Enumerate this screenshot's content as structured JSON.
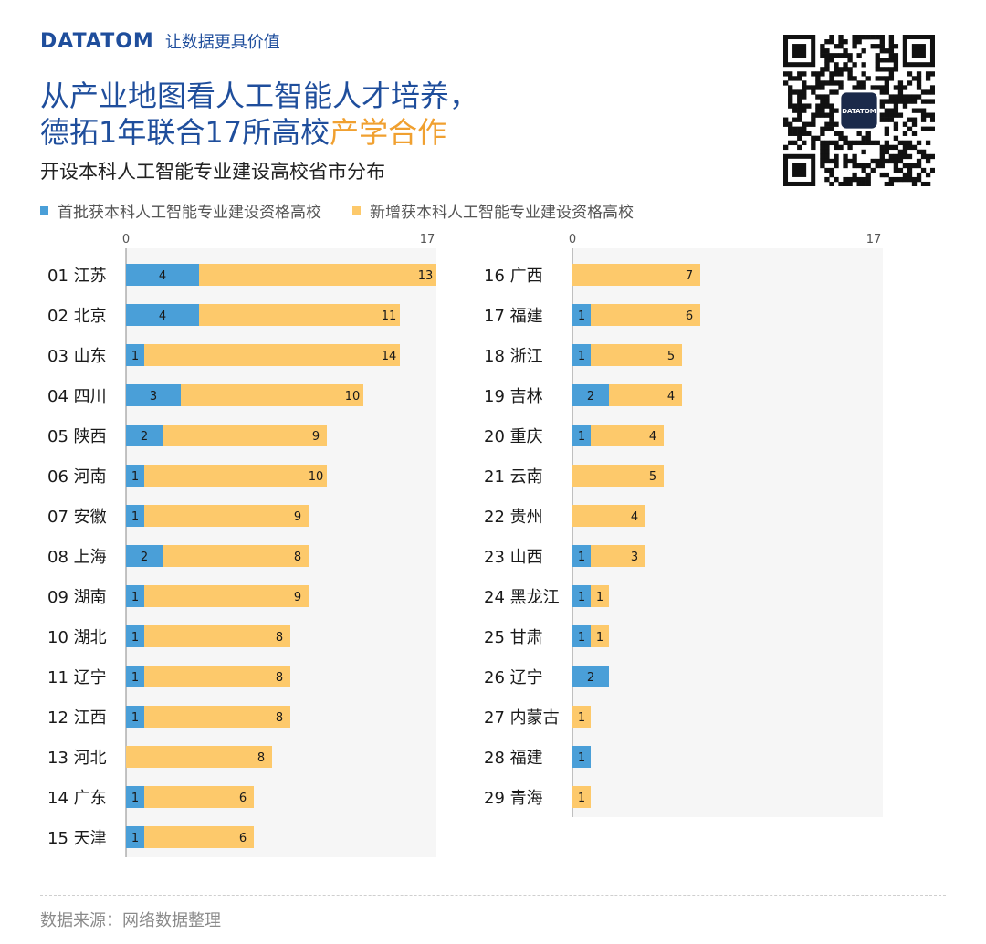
{
  "header": {
    "logo_text": "DATATOM",
    "slogan": "让数据更具价值",
    "title_line1": "从产业地图看人工智能人才培养，",
    "title_line2_main": "德拓1年联合17所高校",
    "title_line2_highlight": "产学合作",
    "subtitle": "开设本科人工智能专业建设高校省市分布",
    "qr_icon": "qr-code-icon",
    "qr_center_label": "DATATOM"
  },
  "colors": {
    "first_batch": "#4a9fd8",
    "new_added": "#fdc96b",
    "panel_bg": "#f6f6f6",
    "title_blue": "#1f4e9c",
    "highlight_orange": "#f0a030"
  },
  "chart_data": [
    {
      "type": "bar",
      "orientation": "horizontal",
      "stacked": true,
      "xlim": [
        0,
        17
      ],
      "tick_labels": [
        "0",
        "17"
      ],
      "categories": [
        "01 江苏",
        "02 北京",
        "03 山东",
        "04 四川",
        "05 陕西",
        "06 河南",
        "07 安徽",
        "08 上海",
        "09 湖南",
        "10 湖北",
        "11 辽宁",
        "12 江西",
        "13 河北",
        "14 广东",
        "15 天津"
      ],
      "series": [
        {
          "name": "首批获本科人工智能专业建设资格高校",
          "values": [
            4,
            4,
            1,
            3,
            2,
            1,
            1,
            2,
            1,
            1,
            1,
            1,
            0,
            1,
            1
          ]
        },
        {
          "name": "新增获本科人工智能专业建设资格高校",
          "values": [
            13,
            11,
            14,
            10,
            9,
            10,
            9,
            8,
            9,
            8,
            8,
            8,
            8,
            6,
            6
          ]
        }
      ]
    },
    {
      "type": "bar",
      "orientation": "horizontal",
      "stacked": true,
      "xlim": [
        0,
        17
      ],
      "tick_labels": [
        "0",
        "17"
      ],
      "categories": [
        "16 广西",
        "17 福建",
        "18 浙江",
        "19 吉林",
        "20 重庆",
        "21 云南",
        "22 贵州",
        "23 山西",
        "24 黑龙江",
        "25 甘肃",
        "26 辽宁",
        "27 内蒙古",
        "28 福建",
        "29 青海"
      ],
      "series": [
        {
          "name": "首批获本科人工智能专业建设资格高校",
          "values": [
            0,
            1,
            1,
            2,
            1,
            0,
            0,
            1,
            1,
            1,
            2,
            0,
            1,
            0
          ]
        },
        {
          "name": "新增获本科人工智能专业建设资格高校",
          "values": [
            7,
            6,
            5,
            4,
            4,
            5,
            4,
            3,
            1,
            1,
            0,
            1,
            0,
            1
          ]
        }
      ]
    }
  ],
  "footer": {
    "source": "数据来源：网络数据整理"
  }
}
